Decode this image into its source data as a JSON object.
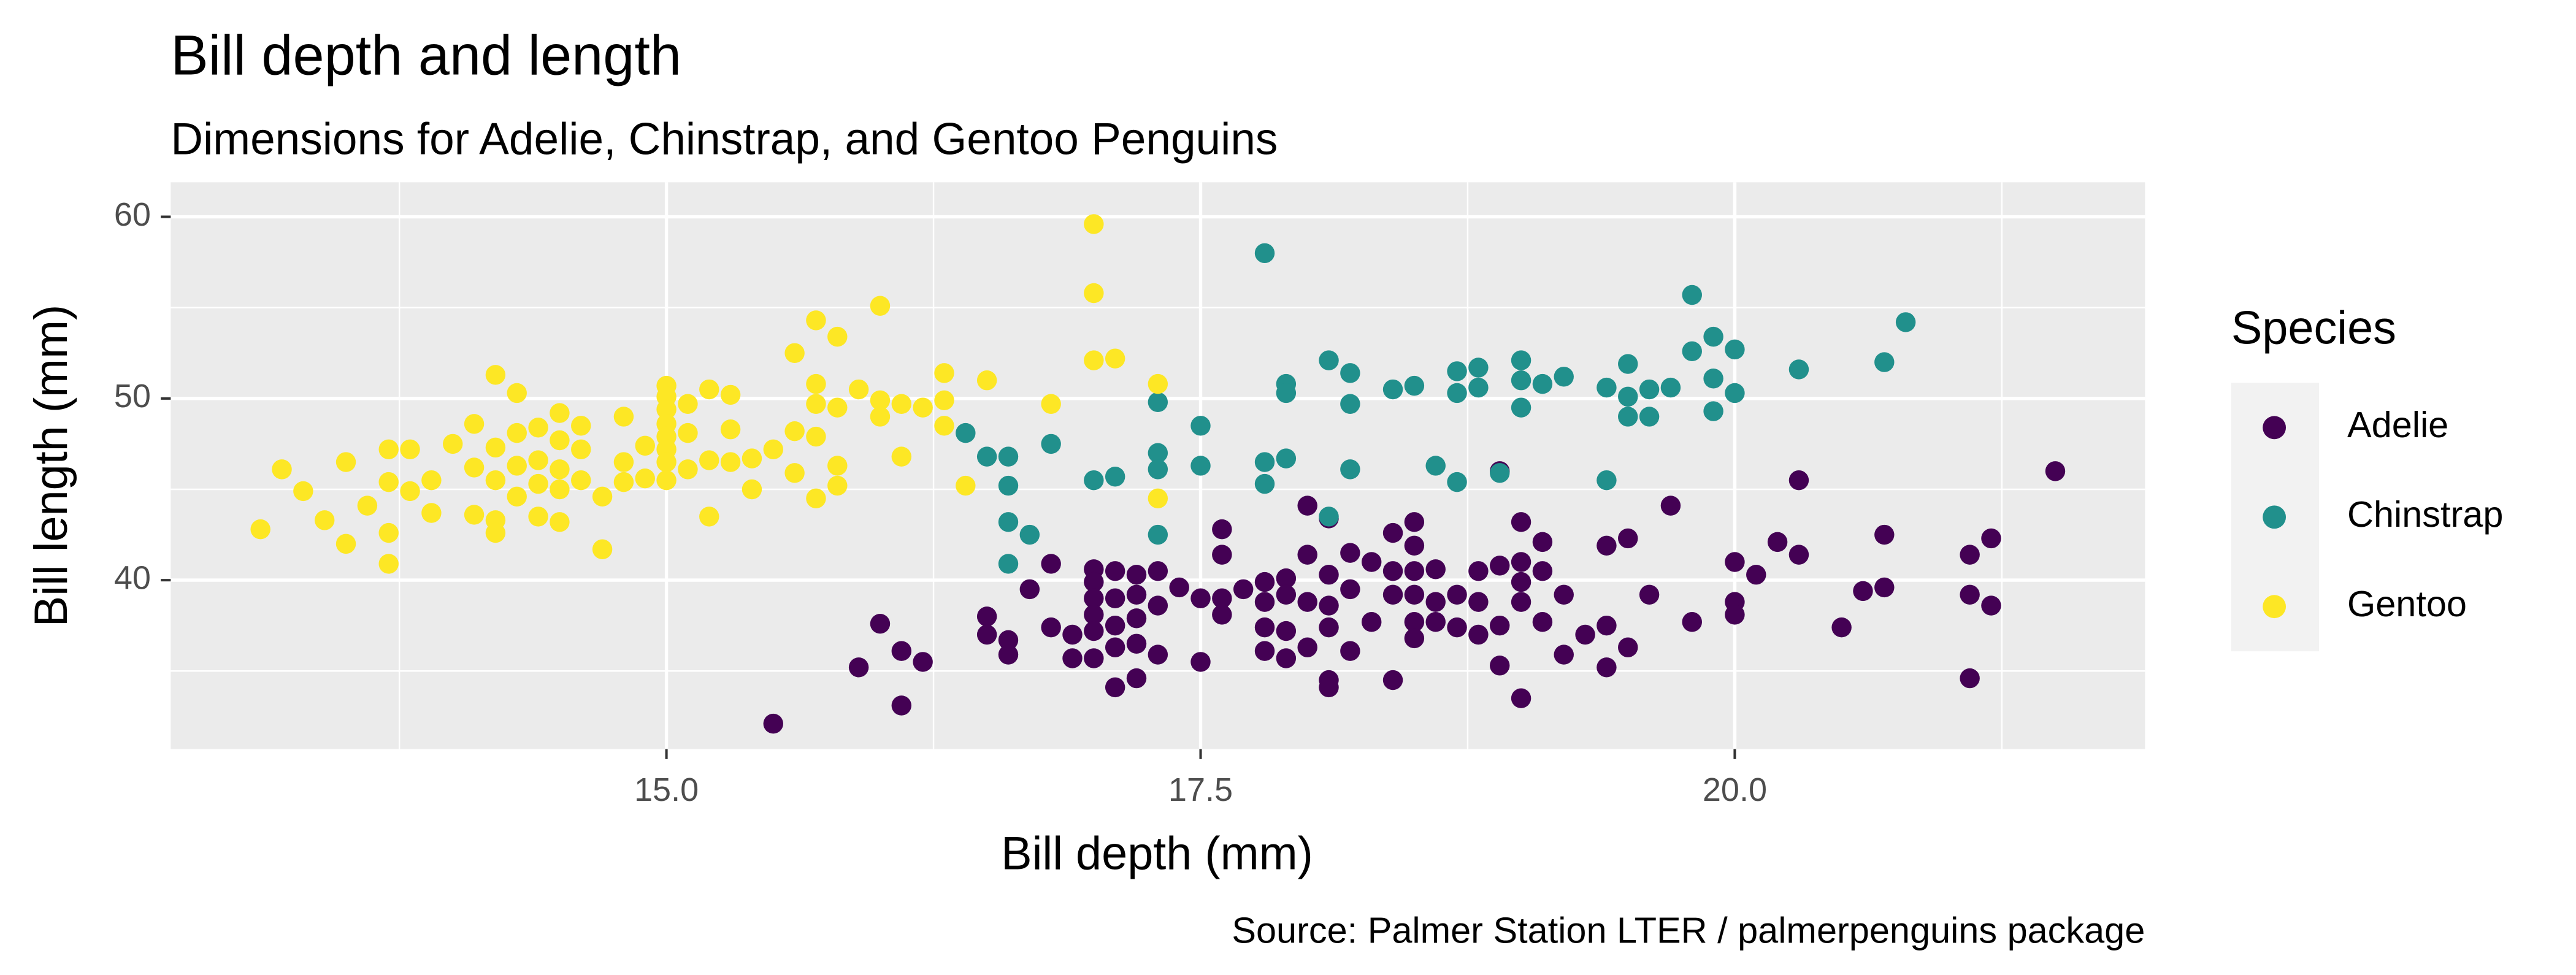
{
  "chart_data": {
    "type": "scatter",
    "title": "Bill depth and length",
    "subtitle": "Dimensions for Adelie, Chinstrap, and Gentoo Penguins",
    "caption": "Source: Palmer Station LTER / palmerpenguins package",
    "x_label": "Bill depth (mm)",
    "y_label": "Bill length (mm)",
    "legend_title": "Species",
    "legend_position": "right",
    "grid": true,
    "xlim": [
      12.68,
      21.92
    ],
    "ylim": [
      30.7,
      61.9
    ],
    "xticks": [
      {
        "value": 15,
        "label": "15.0"
      },
      {
        "value": 17.5,
        "label": "17.5"
      },
      {
        "value": 20,
        "label": "20.0"
      }
    ],
    "yticks": [
      40,
      50,
      60
    ],
    "x_minor_grid": [
      13.75,
      16.25,
      18.75,
      21.25
    ],
    "y_minor_grid": [
      35,
      45,
      55
    ],
    "series": [
      {
        "name": "Adelie",
        "color": "#440154",
        "x": [
          15.5,
          15.9,
          16.0,
          16.1,
          16.1,
          16.2,
          16.5,
          16.5,
          16.6,
          16.6,
          16.7,
          16.8,
          16.8,
          16.9,
          16.9,
          17.0,
          17.0,
          17.0,
          17.0,
          17.0,
          17.0,
          17.1,
          17.1,
          17.1,
          17.1,
          17.1,
          17.2,
          17.2,
          17.2,
          17.2,
          17.2,
          17.3,
          17.3,
          17.3,
          17.4,
          17.5,
          17.5,
          17.6,
          17.6,
          17.6,
          17.6,
          17.7,
          17.8,
          17.8,
          17.8,
          17.8,
          17.9,
          17.9,
          17.9,
          17.9,
          18.0,
          18.0,
          18.0,
          18.0,
          18.1,
          18.1,
          18.1,
          18.1,
          18.1,
          18.1,
          18.2,
          18.2,
          18.2,
          18.3,
          18.3,
          18.4,
          18.4,
          18.4,
          18.4,
          18.5,
          18.5,
          18.5,
          18.5,
          18.5,
          18.5,
          18.6,
          18.6,
          18.6,
          18.7,
          18.7,
          18.8,
          18.8,
          18.8,
          18.9,
          18.9,
          18.9,
          19.0,
          19.0,
          19.0,
          19.0,
          19.0,
          19.1,
          19.1,
          19.1,
          19.2,
          19.2,
          19.3,
          19.4,
          19.4,
          19.4,
          19.5,
          19.5,
          19.6,
          19.7,
          19.8,
          20.0,
          20.0,
          20.0,
          20.1,
          20.2,
          20.3,
          20.3,
          20.5,
          20.6,
          20.7,
          20.7,
          21.1,
          21.1,
          21.1,
          21.2,
          21.2,
          21.5,
          18.9
        ],
        "values": [
          32.1,
          35.2,
          37.6,
          36.1,
          33.1,
          35.5,
          38.0,
          37.0,
          36.7,
          35.9,
          39.5,
          40.9,
          37.4,
          35.7,
          37.0,
          40.6,
          39.9,
          39.0,
          38.1,
          37.2,
          35.7,
          40.5,
          39.0,
          37.5,
          36.3,
          34.1,
          40.3,
          39.2,
          37.9,
          36.5,
          34.6,
          40.5,
          38.6,
          35.9,
          39.6,
          39.0,
          35.5,
          41.4,
          42.8,
          39.0,
          38.1,
          39.5,
          39.9,
          38.8,
          37.4,
          36.1,
          40.1,
          39.2,
          37.2,
          35.7,
          44.1,
          41.4,
          38.8,
          36.3,
          43.4,
          40.3,
          38.6,
          37.4,
          34.5,
          34.1,
          41.5,
          39.5,
          36.1,
          41.0,
          37.7,
          42.6,
          40.5,
          39.2,
          34.5,
          43.2,
          41.9,
          40.5,
          39.2,
          37.7,
          36.8,
          40.6,
          38.8,
          37.7,
          39.2,
          37.4,
          40.5,
          38.8,
          37.0,
          40.8,
          37.5,
          35.3,
          43.2,
          41.0,
          39.9,
          38.8,
          33.5,
          42.1,
          40.5,
          37.7,
          39.2,
          35.9,
          37.0,
          41.9,
          37.5,
          35.2,
          42.3,
          36.3,
          39.2,
          44.1,
          37.7,
          41.0,
          38.8,
          38.1,
          40.3,
          42.1,
          45.5,
          41.4,
          37.4,
          39.4,
          42.5,
          39.6,
          41.4,
          39.2,
          34.6,
          42.3,
          38.6,
          46.0,
          46.0
        ]
      },
      {
        "name": "Chinstrap",
        "color": "#21908C",
        "x": [
          16.4,
          16.5,
          16.6,
          16.6,
          16.6,
          16.6,
          16.7,
          16.8,
          17.0,
          17.1,
          17.3,
          17.3,
          17.3,
          17.3,
          17.5,
          17.5,
          17.8,
          17.8,
          17.8,
          17.9,
          17.9,
          17.9,
          18.1,
          18.1,
          18.2,
          18.2,
          18.2,
          18.4,
          18.5,
          18.6,
          18.7,
          18.7,
          18.7,
          18.8,
          18.8,
          18.9,
          19.0,
          19.0,
          19.0,
          19.1,
          19.2,
          19.4,
          19.4,
          19.5,
          19.5,
          19.5,
          19.6,
          19.6,
          19.7,
          19.8,
          19.8,
          19.9,
          19.9,
          19.9,
          20.0,
          20.0,
          20.3,
          20.7,
          20.8
        ],
        "values": [
          48.1,
          46.8,
          46.8,
          45.2,
          43.2,
          40.9,
          42.5,
          47.5,
          45.5,
          45.7,
          49.8,
          47.0,
          46.1,
          42.5,
          48.5,
          46.3,
          58.0,
          46.5,
          45.3,
          50.8,
          50.3,
          46.7,
          52.1,
          43.5,
          51.4,
          46.1,
          49.7,
          50.5,
          50.7,
          46.3,
          51.5,
          50.3,
          45.4,
          50.6,
          51.7,
          45.9,
          52.1,
          51.0,
          49.5,
          50.8,
          51.2,
          50.6,
          45.5,
          51.9,
          50.1,
          49.0,
          50.5,
          49.0,
          50.6,
          55.7,
          52.6,
          53.4,
          51.1,
          49.3,
          52.7,
          50.3,
          51.6,
          52.0,
          54.2
        ]
      },
      {
        "name": "Gentoo",
        "color": "#FDE725",
        "x": [
          13.1,
          13.2,
          13.3,
          13.4,
          13.5,
          13.5,
          13.6,
          13.7,
          13.7,
          13.7,
          13.7,
          13.8,
          13.8,
          13.9,
          13.9,
          14.0,
          14.1,
          14.1,
          14.1,
          14.2,
          14.2,
          14.2,
          14.2,
          14.2,
          14.3,
          14.3,
          14.3,
          14.3,
          14.4,
          14.4,
          14.4,
          14.4,
          14.5,
          14.5,
          14.5,
          14.5,
          14.5,
          14.6,
          14.6,
          14.6,
          14.7,
          14.7,
          14.8,
          14.8,
          14.8,
          14.9,
          14.9,
          15.0,
          15.0,
          15.0,
          15.0,
          15.0,
          15.0,
          15.0,
          15.0,
          15.1,
          15.1,
          15.1,
          15.2,
          15.2,
          15.2,
          15.3,
          15.3,
          15.3,
          15.4,
          15.4,
          15.5,
          15.6,
          15.6,
          15.6,
          15.7,
          15.7,
          15.7,
          15.7,
          15.7,
          15.8,
          15.8,
          15.8,
          15.8,
          15.9,
          16.0,
          16.0,
          16.0,
          16.1,
          16.1,
          16.2,
          16.3,
          16.3,
          16.3,
          16.4,
          16.5,
          16.8,
          17.0,
          17.0,
          17.0,
          17.1,
          17.3,
          17.3
        ],
        "values": [
          42.8,
          46.1,
          44.9,
          43.3,
          46.5,
          42.0,
          44.1,
          47.2,
          45.4,
          42.6,
          40.9,
          47.2,
          44.9,
          45.5,
          43.7,
          47.5,
          48.6,
          46.2,
          43.6,
          51.3,
          47.3,
          45.5,
          43.3,
          42.6,
          50.3,
          48.1,
          46.3,
          44.6,
          48.4,
          46.6,
          45.3,
          43.5,
          49.2,
          47.7,
          46.1,
          45.0,
          43.2,
          48.5,
          47.2,
          45.5,
          44.6,
          41.7,
          49.0,
          46.5,
          45.4,
          47.4,
          45.6,
          50.7,
          50.1,
          49.4,
          48.6,
          47.9,
          47.2,
          46.5,
          45.5,
          49.7,
          48.1,
          46.1,
          43.5,
          50.5,
          46.6,
          50.2,
          48.3,
          46.5,
          46.7,
          45.0,
          47.2,
          52.5,
          48.2,
          45.9,
          54.3,
          50.8,
          49.7,
          47.9,
          44.5,
          53.4,
          49.5,
          46.3,
          45.2,
          50.5,
          55.1,
          49.9,
          49.0,
          49.7,
          46.8,
          49.5,
          51.4,
          49.9,
          48.5,
          45.2,
          51.0,
          49.7,
          59.6,
          55.8,
          52.1,
          52.2,
          50.8,
          44.5
        ]
      }
    ]
  }
}
